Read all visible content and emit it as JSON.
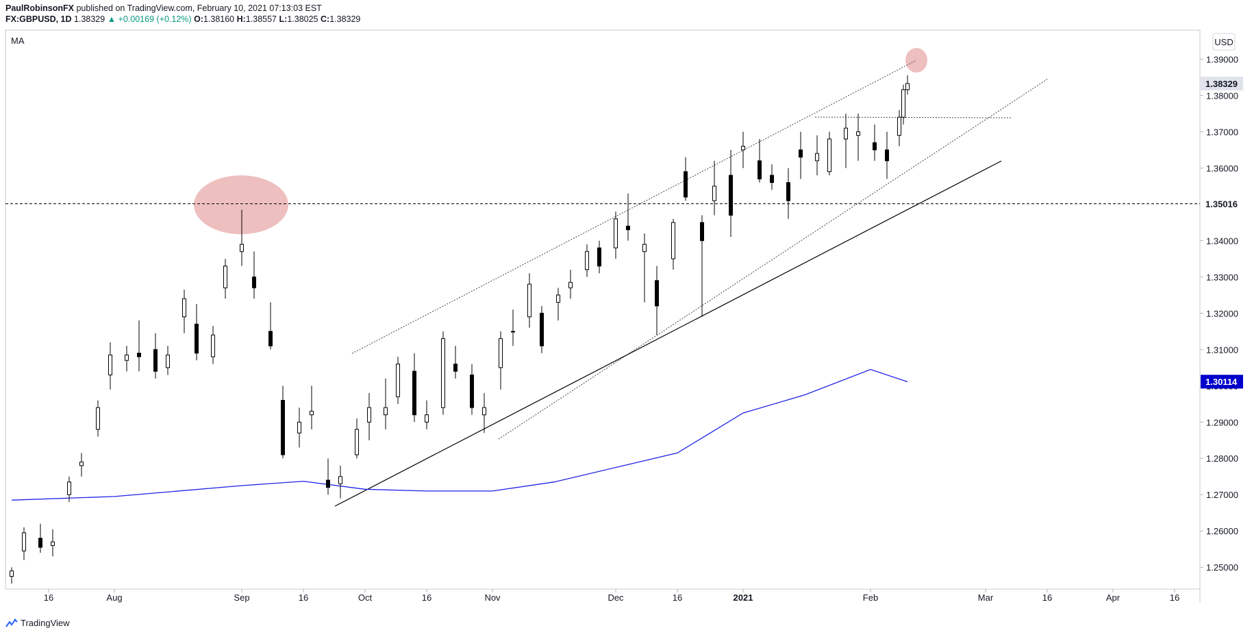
{
  "header": {
    "author": "PaulRobinsonFX",
    "published_text": " published on TradingView.com, February 10, 2021 07:13:03 EST",
    "symbol": "FX:GBPUSD, 1D",
    "last": "1.38329",
    "change": "▲ +0.00169 (+0.12%)",
    "o_label": "O:",
    "o_value": "1.38160",
    "h_label": "H:",
    "h_value": "1.38557",
    "l_label": "L:",
    "l_value": "1.38025",
    "c_label": "C:",
    "c_value": "1.38329"
  },
  "indicator_label": "MA",
  "currency_button": "USD",
  "footer": {
    "brand": "TradingView"
  },
  "colors": {
    "up_candle_fill": "#ffffff",
    "down_candle_fill": "#000000",
    "candle_stroke": "#000000",
    "ma_line": "#1e22e6",
    "highlight_ellipse": "#e8a9a9",
    "ma_tag_bg": "#0000cc",
    "last_tag_bg": "#e0e3eb"
  },
  "chart_data": {
    "type": "candlestick",
    "symbol": "FX:GBPUSD",
    "interval": "1D",
    "ylim": [
      1.244,
      1.398
    ],
    "y_ticks": [
      "1.25000",
      "1.26000",
      "1.27000",
      "1.28000",
      "1.29000",
      "1.30000",
      "1.31000",
      "1.32000",
      "1.33000",
      "1.34000",
      "1.35000",
      "1.36000",
      "1.37000",
      "1.38000",
      "1.39000"
    ],
    "x_ticks": [
      "16",
      "Aug",
      "Sep",
      "16",
      "Oct",
      "16",
      "Nov",
      "Dec",
      "16",
      "2021",
      "Feb",
      "Mar",
      "16",
      "Apr",
      "16"
    ],
    "x_tick_dates": [
      "2020-07-16",
      "2020-08-01",
      "2020-09-01",
      "2020-09-16",
      "2020-10-01",
      "2020-10-16",
      "2020-11-01",
      "2020-12-01",
      "2020-12-16",
      "2021-01-01",
      "2021-02-01",
      "2021-03-01",
      "2021-03-16",
      "2021-04-01",
      "2021-04-16"
    ],
    "price_tags": [
      {
        "label": "1.38329",
        "kind": "last"
      },
      {
        "label": "1.35016",
        "kind": "level"
      },
      {
        "label": "1.30114",
        "kind": "ma"
      }
    ],
    "horizontal_level": 1.35016,
    "ma_series": {
      "name": "MA",
      "x": [
        "2020-07-07",
        "2020-08-01",
        "2020-09-01",
        "2020-09-16",
        "2020-10-01",
        "2020-10-16",
        "2020-11-01",
        "2020-11-16",
        "2020-12-01",
        "2020-12-16",
        "2021-01-01",
        "2021-01-16",
        "2021-02-01",
        "2021-02-10"
      ],
      "values": [
        1.2685,
        1.2695,
        1.2725,
        1.2737,
        1.2715,
        1.271,
        1.271,
        1.2735,
        1.2775,
        1.2815,
        1.2925,
        1.2975,
        1.3045,
        1.3011
      ]
    },
    "candles": [
      {
        "x": "2020-07-07",
        "o": 1.2475,
        "h": 1.25,
        "l": 1.2455,
        "c": 1.249
      },
      {
        "x": "2020-07-10",
        "o": 1.2545,
        "h": 1.261,
        "l": 1.252,
        "c": 1.2595
      },
      {
        "x": "2020-07-14",
        "o": 1.258,
        "h": 1.262,
        "l": 1.254,
        "c": 1.2555
      },
      {
        "x": "2020-07-17",
        "o": 1.256,
        "h": 1.2605,
        "l": 1.253,
        "c": 1.257
      },
      {
        "x": "2020-07-21",
        "o": 1.27,
        "h": 1.275,
        "l": 1.268,
        "c": 1.2735
      },
      {
        "x": "2020-07-24",
        "o": 1.278,
        "h": 1.2815,
        "l": 1.275,
        "c": 1.279
      },
      {
        "x": "2020-07-28",
        "o": 1.288,
        "h": 1.296,
        "l": 1.286,
        "c": 1.294
      },
      {
        "x": "2020-07-31",
        "o": 1.303,
        "h": 1.312,
        "l": 1.299,
        "c": 1.3085
      },
      {
        "x": "2020-08-04",
        "o": 1.307,
        "h": 1.311,
        "l": 1.304,
        "c": 1.3085
      },
      {
        "x": "2020-08-07",
        "o": 1.309,
        "h": 1.318,
        "l": 1.304,
        "c": 1.308
      },
      {
        "x": "2020-08-11",
        "o": 1.31,
        "h": 1.3145,
        "l": 1.302,
        "c": 1.304
      },
      {
        "x": "2020-08-14",
        "o": 1.305,
        "h": 1.311,
        "l": 1.303,
        "c": 1.3085
      },
      {
        "x": "2020-08-18",
        "o": 1.319,
        "h": 1.3265,
        "l": 1.3145,
        "c": 1.324
      },
      {
        "x": "2020-08-21",
        "o": 1.317,
        "h": 1.3225,
        "l": 1.307,
        "c": 1.309
      },
      {
        "x": "2020-08-25",
        "o": 1.308,
        "h": 1.3165,
        "l": 1.306,
        "c": 1.314
      },
      {
        "x": "2020-08-28",
        "o": 1.327,
        "h": 1.335,
        "l": 1.324,
        "c": 1.333
      },
      {
        "x": "2020-09-01",
        "o": 1.337,
        "h": 1.3485,
        "l": 1.333,
        "c": 1.339
      },
      {
        "x": "2020-09-04",
        "o": 1.33,
        "h": 1.337,
        "l": 1.324,
        "c": 1.327
      },
      {
        "x": "2020-09-08",
        "o": 1.315,
        "h": 1.323,
        "l": 1.31,
        "c": 1.311
      },
      {
        "x": "2020-09-11",
        "o": 1.296,
        "h": 1.3,
        "l": 1.28,
        "c": 1.281
      },
      {
        "x": "2020-09-15",
        "o": 1.287,
        "h": 1.294,
        "l": 1.283,
        "c": 1.29
      },
      {
        "x": "2020-09-18",
        "o": 1.292,
        "h": 1.3,
        "l": 1.288,
        "c": 1.293
      },
      {
        "x": "2020-09-22",
        "o": 1.274,
        "h": 1.28,
        "l": 1.27,
        "c": 1.272
      },
      {
        "x": "2020-09-25",
        "o": 1.273,
        "h": 1.278,
        "l": 1.269,
        "c": 1.275
      },
      {
        "x": "2020-09-29",
        "o": 1.281,
        "h": 1.291,
        "l": 1.28,
        "c": 1.288
      },
      {
        "x": "2020-10-02",
        "o": 1.29,
        "h": 1.298,
        "l": 1.285,
        "c": 1.294
      },
      {
        "x": "2020-10-06",
        "o": 1.292,
        "h": 1.302,
        "l": 1.288,
        "c": 1.294
      },
      {
        "x": "2020-10-09",
        "o": 1.297,
        "h": 1.308,
        "l": 1.295,
        "c": 1.306
      },
      {
        "x": "2020-10-13",
        "o": 1.304,
        "h": 1.309,
        "l": 1.29,
        "c": 1.292
      },
      {
        "x": "2020-10-16",
        "o": 1.29,
        "h": 1.296,
        "l": 1.288,
        "c": 1.292
      },
      {
        "x": "2020-10-20",
        "o": 1.294,
        "h": 1.315,
        "l": 1.292,
        "c": 1.313
      },
      {
        "x": "2020-10-23",
        "o": 1.306,
        "h": 1.311,
        "l": 1.302,
        "c": 1.304
      },
      {
        "x": "2020-10-27",
        "o": 1.303,
        "h": 1.306,
        "l": 1.292,
        "c": 1.294
      },
      {
        "x": "2020-10-30",
        "o": 1.292,
        "h": 1.298,
        "l": 1.287,
        "c": 1.294
      },
      {
        "x": "2020-11-03",
        "o": 1.305,
        "h": 1.315,
        "l": 1.299,
        "c": 1.313
      },
      {
        "x": "2020-11-06",
        "o": 1.315,
        "h": 1.321,
        "l": 1.311,
        "c": 1.315
      },
      {
        "x": "2020-11-10",
        "o": 1.319,
        "h": 1.331,
        "l": 1.316,
        "c": 1.328
      },
      {
        "x": "2020-11-13",
        "o": 1.32,
        "h": 1.322,
        "l": 1.309,
        "c": 1.311
      },
      {
        "x": "2020-11-17",
        "o": 1.323,
        "h": 1.327,
        "l": 1.318,
        "c": 1.325
      },
      {
        "x": "2020-11-20",
        "o": 1.327,
        "h": 1.332,
        "l": 1.324,
        "c": 1.3285
      },
      {
        "x": "2020-11-24",
        "o": 1.332,
        "h": 1.339,
        "l": 1.33,
        "c": 1.337
      },
      {
        "x": "2020-11-27",
        "o": 1.338,
        "h": 1.34,
        "l": 1.331,
        "c": 1.333
      },
      {
        "x": "2020-12-01",
        "o": 1.338,
        "h": 1.348,
        "l": 1.335,
        "c": 1.346
      },
      {
        "x": "2020-12-04",
        "o": 1.344,
        "h": 1.353,
        "l": 1.34,
        "c": 1.343
      },
      {
        "x": "2020-12-08",
        "o": 1.337,
        "h": 1.342,
        "l": 1.323,
        "c": 1.339
      },
      {
        "x": "2020-12-11",
        "o": 1.329,
        "h": 1.333,
        "l": 1.314,
        "c": 1.322
      },
      {
        "x": "2020-12-15",
        "o": 1.335,
        "h": 1.346,
        "l": 1.332,
        "c": 1.345
      },
      {
        "x": "2020-12-18",
        "o": 1.359,
        "h": 1.363,
        "l": 1.351,
        "c": 1.352
      },
      {
        "x": "2020-12-22",
        "o": 1.345,
        "h": 1.347,
        "l": 1.319,
        "c": 1.34
      },
      {
        "x": "2020-12-25",
        "o": 1.351,
        "h": 1.362,
        "l": 1.347,
        "c": 1.355
      },
      {
        "x": "2020-12-29",
        "o": 1.358,
        "h": 1.365,
        "l": 1.341,
        "c": 1.347
      },
      {
        "x": "2021-01-01",
        "o": 1.365,
        "h": 1.37,
        "l": 1.36,
        "c": 1.366
      },
      {
        "x": "2021-01-05",
        "o": 1.362,
        "h": 1.368,
        "l": 1.356,
        "c": 1.357
      },
      {
        "x": "2021-01-08",
        "o": 1.358,
        "h": 1.361,
        "l": 1.354,
        "c": 1.356
      },
      {
        "x": "2021-01-12",
        "o": 1.356,
        "h": 1.36,
        "l": 1.346,
        "c": 1.351
      },
      {
        "x": "2021-01-15",
        "o": 1.365,
        "h": 1.37,
        "l": 1.357,
        "c": 1.363
      },
      {
        "x": "2021-01-19",
        "o": 1.362,
        "h": 1.369,
        "l": 1.358,
        "c": 1.364
      },
      {
        "x": "2021-01-22",
        "o": 1.359,
        "h": 1.37,
        "l": 1.358,
        "c": 1.368
      },
      {
        "x": "2021-01-26",
        "o": 1.368,
        "h": 1.375,
        "l": 1.36,
        "c": 1.371
      },
      {
        "x": "2021-01-29",
        "o": 1.369,
        "h": 1.375,
        "l": 1.362,
        "c": 1.37
      },
      {
        "x": "2021-02-02",
        "o": 1.367,
        "h": 1.372,
        "l": 1.362,
        "c": 1.365
      },
      {
        "x": "2021-02-05",
        "o": 1.365,
        "h": 1.37,
        "l": 1.357,
        "c": 1.362
      },
      {
        "x": "2021-02-08",
        "o": 1.369,
        "h": 1.376,
        "l": 1.366,
        "c": 1.374
      },
      {
        "x": "2021-02-09",
        "o": 1.374,
        "h": 1.383,
        "l": 1.372,
        "c": 1.3816
      },
      {
        "x": "2021-02-10",
        "o": 1.3816,
        "h": 1.38557,
        "l": 1.38025,
        "c": 1.38329
      }
    ]
  }
}
